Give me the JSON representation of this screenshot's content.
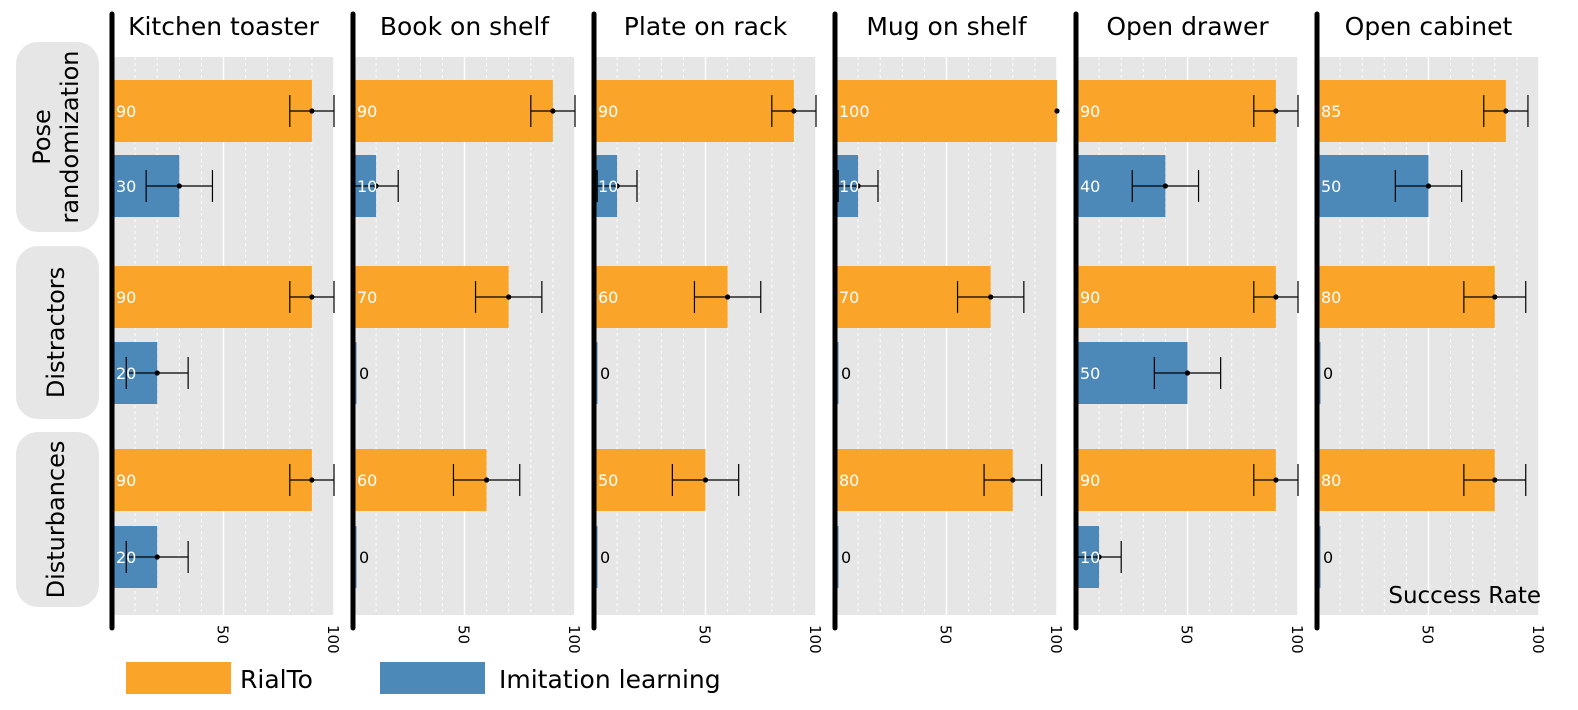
{
  "chart_data": {
    "type": "bar",
    "orientation": "horizontal",
    "panels": [
      "Kitchen toaster",
      "Book on shelf",
      "Plate on rack",
      "Mug on shelf",
      "Open drawer",
      "Open cabinet"
    ],
    "groups": [
      "Pose\nrandomization",
      "Distractors",
      "Disturbances"
    ],
    "series": [
      {
        "name": "RialTo",
        "color": "#FAA52A",
        "values": [
          [
            90,
            90,
            90
          ],
          [
            90,
            70,
            60
          ],
          [
            90,
            60,
            50
          ],
          [
            100,
            70,
            80
          ],
          [
            90,
            90,
            90
          ],
          [
            85,
            80,
            80
          ]
        ],
        "errors": [
          [
            10,
            10,
            10
          ],
          [
            10,
            15,
            15
          ],
          [
            10,
            15,
            15
          ],
          [
            0,
            15,
            13
          ],
          [
            10,
            10,
            10
          ],
          [
            10,
            14,
            14
          ]
        ]
      },
      {
        "name": "Imitation learning",
        "color": "#4C88B8",
        "values": [
          [
            30,
            20,
            20
          ],
          [
            10,
            0,
            0
          ],
          [
            10,
            0,
            0
          ],
          [
            10,
            0,
            0
          ],
          [
            40,
            50,
            10
          ],
          [
            50,
            0,
            0
          ]
        ],
        "errors": [
          [
            15,
            14,
            14
          ],
          [
            10,
            0,
            0
          ],
          [
            9,
            0,
            0
          ],
          [
            9,
            0,
            0
          ],
          [
            15,
            15,
            10
          ],
          [
            15,
            0,
            0
          ]
        ]
      }
    ],
    "xlabel": "Success Rate",
    "xlim": [
      0,
      100
    ],
    "xticks": [
      "50",
      "100"
    ],
    "grid": true,
    "legend_position": "bottom-left"
  }
}
